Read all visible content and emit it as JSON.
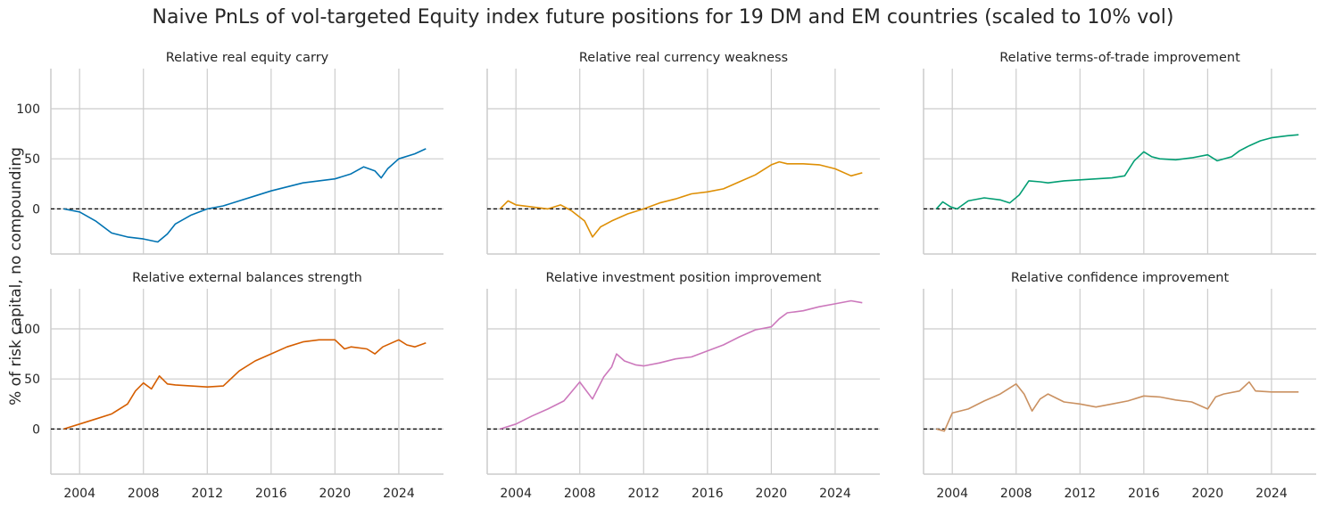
{
  "chart_data": {
    "type": "line",
    "title": "Naive PnLs of vol-targeted Equity index future positions for 19 DM and EM countries (scaled to 10% vol)",
    "ylabel": "% of risk capital, no compounding",
    "xlim": [
      2002.2,
      2026.8
    ],
    "ylim": [
      -45,
      140
    ],
    "xticks": [
      2004,
      2008,
      2012,
      2016,
      2020,
      2024
    ],
    "yticks": [
      0,
      50,
      100
    ],
    "grid": true,
    "zero_line": "dashed",
    "panels": [
      {
        "title": "Relative real equity carry",
        "color": "#0173b2",
        "points": [
          [
            2003.0,
            0
          ],
          [
            2004.0,
            -3
          ],
          [
            2005.0,
            -12
          ],
          [
            2006.0,
            -24
          ],
          [
            2007.0,
            -28
          ],
          [
            2008.0,
            -30
          ],
          [
            2008.9,
            -33
          ],
          [
            2009.5,
            -25
          ],
          [
            2010.0,
            -15
          ],
          [
            2011.0,
            -6
          ],
          [
            2012.0,
            0
          ],
          [
            2013.0,
            3
          ],
          [
            2014.0,
            8
          ],
          [
            2015.0,
            13
          ],
          [
            2016.0,
            18
          ],
          [
            2017.0,
            22
          ],
          [
            2018.0,
            26
          ],
          [
            2019.0,
            28
          ],
          [
            2020.0,
            30
          ],
          [
            2021.0,
            35
          ],
          [
            2021.8,
            42
          ],
          [
            2022.5,
            38
          ],
          [
            2022.9,
            31
          ],
          [
            2023.3,
            40
          ],
          [
            2024.0,
            50
          ],
          [
            2025.0,
            55
          ],
          [
            2025.7,
            60
          ]
        ]
      },
      {
        "title": "Relative real currency weakness",
        "color": "#de8f05",
        "points": [
          [
            2003.0,
            0
          ],
          [
            2003.5,
            8
          ],
          [
            2004.0,
            4
          ],
          [
            2005.0,
            2
          ],
          [
            2006.0,
            0
          ],
          [
            2006.8,
            4
          ],
          [
            2007.5,
            -2
          ],
          [
            2008.3,
            -12
          ],
          [
            2008.8,
            -28
          ],
          [
            2009.3,
            -18
          ],
          [
            2010.0,
            -12
          ],
          [
            2011.0,
            -5
          ],
          [
            2012.0,
            0
          ],
          [
            2013.0,
            6
          ],
          [
            2014.0,
            10
          ],
          [
            2015.0,
            15
          ],
          [
            2016.0,
            17
          ],
          [
            2017.0,
            20
          ],
          [
            2018.0,
            27
          ],
          [
            2019.0,
            34
          ],
          [
            2020.0,
            44
          ],
          [
            2020.5,
            47
          ],
          [
            2021.0,
            45
          ],
          [
            2022.0,
            45
          ],
          [
            2023.0,
            44
          ],
          [
            2024.0,
            40
          ],
          [
            2025.0,
            33
          ],
          [
            2025.7,
            36
          ]
        ]
      },
      {
        "title": "Relative terms-of-trade improvement",
        "color": "#029e73",
        "points": [
          [
            2003.0,
            0
          ],
          [
            2003.4,
            7
          ],
          [
            2003.9,
            2
          ],
          [
            2004.3,
            0
          ],
          [
            2005.0,
            8
          ],
          [
            2006.0,
            11
          ],
          [
            2007.0,
            9
          ],
          [
            2007.6,
            6
          ],
          [
            2008.2,
            14
          ],
          [
            2008.8,
            28
          ],
          [
            2009.5,
            27
          ],
          [
            2010.0,
            26
          ],
          [
            2011.0,
            28
          ],
          [
            2012.0,
            29
          ],
          [
            2013.0,
            30
          ],
          [
            2014.0,
            31
          ],
          [
            2014.8,
            33
          ],
          [
            2015.4,
            48
          ],
          [
            2016.0,
            57
          ],
          [
            2016.5,
            52
          ],
          [
            2017.0,
            50
          ],
          [
            2018.0,
            49
          ],
          [
            2019.0,
            51
          ],
          [
            2020.0,
            54
          ],
          [
            2020.6,
            48
          ],
          [
            2021.5,
            52
          ],
          [
            2022.0,
            58
          ],
          [
            2022.6,
            63
          ],
          [
            2023.3,
            68
          ],
          [
            2024.0,
            71
          ],
          [
            2025.0,
            73
          ],
          [
            2025.7,
            74
          ]
        ]
      },
      {
        "title": "Relative external balances strength",
        "color": "#d55e00",
        "points": [
          [
            2003.0,
            0
          ],
          [
            2004.0,
            5
          ],
          [
            2005.0,
            10
          ],
          [
            2006.0,
            15
          ],
          [
            2007.0,
            25
          ],
          [
            2007.5,
            38
          ],
          [
            2008.0,
            46
          ],
          [
            2008.5,
            40
          ],
          [
            2009.0,
            53
          ],
          [
            2009.5,
            45
          ],
          [
            2010.0,
            44
          ],
          [
            2011.0,
            43
          ],
          [
            2012.0,
            42
          ],
          [
            2013.0,
            43
          ],
          [
            2014.0,
            58
          ],
          [
            2015.0,
            68
          ],
          [
            2016.0,
            75
          ],
          [
            2017.0,
            82
          ],
          [
            2018.0,
            87
          ],
          [
            2019.0,
            89
          ],
          [
            2020.0,
            89
          ],
          [
            2020.6,
            80
          ],
          [
            2021.0,
            82
          ],
          [
            2022.0,
            80
          ],
          [
            2022.5,
            75
          ],
          [
            2023.0,
            82
          ],
          [
            2024.0,
            89
          ],
          [
            2024.5,
            84
          ],
          [
            2025.0,
            82
          ],
          [
            2025.7,
            86
          ]
        ]
      },
      {
        "title": "Relative investment position improvement",
        "color": "#cc78bc",
        "points": [
          [
            2003.0,
            0
          ],
          [
            2004.0,
            5
          ],
          [
            2005.0,
            13
          ],
          [
            2006.0,
            20
          ],
          [
            2007.0,
            28
          ],
          [
            2008.0,
            47
          ],
          [
            2008.8,
            30
          ],
          [
            2009.5,
            52
          ],
          [
            2010.0,
            62
          ],
          [
            2010.3,
            75
          ],
          [
            2010.8,
            68
          ],
          [
            2011.5,
            64
          ],
          [
            2012.0,
            63
          ],
          [
            2013.0,
            66
          ],
          [
            2014.0,
            70
          ],
          [
            2015.0,
            72
          ],
          [
            2016.0,
            78
          ],
          [
            2017.0,
            84
          ],
          [
            2018.0,
            92
          ],
          [
            2019.0,
            99
          ],
          [
            2020.0,
            102
          ],
          [
            2020.5,
            110
          ],
          [
            2021.0,
            116
          ],
          [
            2022.0,
            118
          ],
          [
            2023.0,
            122
          ],
          [
            2024.0,
            125
          ],
          [
            2025.0,
            128
          ],
          [
            2025.7,
            126
          ]
        ]
      },
      {
        "title": "Relative confidence improvement",
        "color": "#ca9161",
        "points": [
          [
            2003.0,
            0
          ],
          [
            2003.5,
            -2
          ],
          [
            2004.0,
            16
          ],
          [
            2005.0,
            20
          ],
          [
            2006.0,
            28
          ],
          [
            2007.0,
            35
          ],
          [
            2008.0,
            45
          ],
          [
            2008.5,
            35
          ],
          [
            2009.0,
            18
          ],
          [
            2009.5,
            30
          ],
          [
            2010.0,
            35
          ],
          [
            2011.0,
            27
          ],
          [
            2012.0,
            25
          ],
          [
            2013.0,
            22
          ],
          [
            2014.0,
            25
          ],
          [
            2015.0,
            28
          ],
          [
            2016.0,
            33
          ],
          [
            2017.0,
            32
          ],
          [
            2018.0,
            29
          ],
          [
            2019.0,
            27
          ],
          [
            2020.0,
            20
          ],
          [
            2020.5,
            32
          ],
          [
            2021.0,
            35
          ],
          [
            2022.0,
            38
          ],
          [
            2022.6,
            47
          ],
          [
            2023.0,
            38
          ],
          [
            2024.0,
            37
          ],
          [
            2025.0,
            37
          ],
          [
            2025.7,
            37
          ]
        ]
      }
    ]
  }
}
